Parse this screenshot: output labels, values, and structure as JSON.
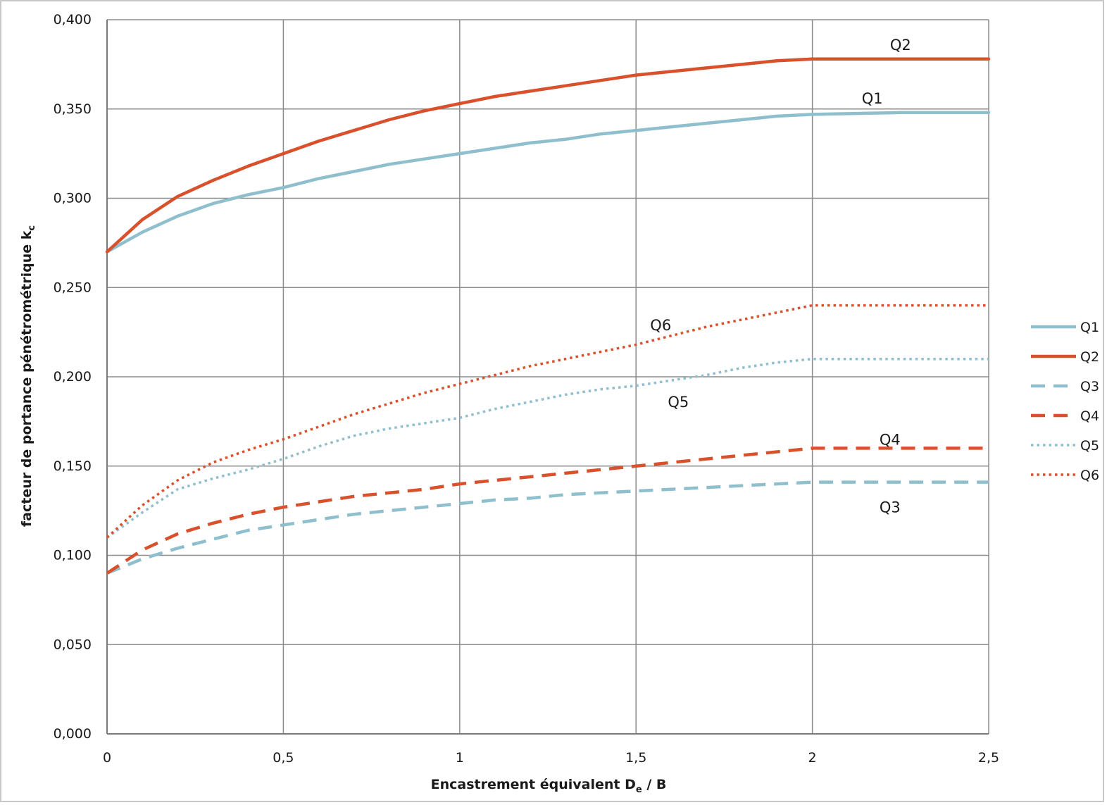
{
  "chart_data": {
    "type": "line",
    "xlabel_main": "Encastrement équivalent D",
    "xlabel_sub": "e",
    "xlabel_tail": " / B",
    "ylabel_main": "facteur de portance pénétrométrique k",
    "ylabel_sub": "c",
    "xlim": [
      0,
      2.5
    ],
    "ylim": [
      0,
      0.4
    ],
    "x_ticks": [
      0,
      0.5,
      1,
      1.5,
      2,
      2.5
    ],
    "x_tick_labels": [
      "0",
      "0,5",
      "1",
      "1,5",
      "2",
      "2,5"
    ],
    "y_ticks": [
      0,
      0.05,
      0.1,
      0.15,
      0.2,
      0.25,
      0.3,
      0.35,
      0.4
    ],
    "y_tick_labels": [
      "0,000",
      "0,050",
      "0,100",
      "0,150",
      "0,200",
      "0,250",
      "0,300",
      "0,350",
      "0,400"
    ],
    "grid": true,
    "legend_position": "right",
    "x": [
      0,
      0.1,
      0.2,
      0.3,
      0.4,
      0.5,
      0.6,
      0.7,
      0.8,
      0.9,
      1.0,
      1.1,
      1.2,
      1.3,
      1.4,
      1.5,
      1.6,
      1.7,
      1.8,
      1.9,
      2.0,
      2.25,
      2.5
    ],
    "series": [
      {
        "name": "Q1",
        "color": "#8fbfcc",
        "style": "solid",
        "values": [
          0.27,
          0.281,
          0.29,
          0.297,
          0.302,
          0.306,
          0.311,
          0.315,
          0.319,
          0.322,
          0.325,
          0.328,
          0.331,
          0.333,
          0.336,
          0.338,
          0.34,
          0.342,
          0.344,
          0.346,
          0.347,
          0.348,
          0.348
        ]
      },
      {
        "name": "Q2",
        "color": "#d9512c",
        "style": "solid",
        "values": [
          0.27,
          0.288,
          0.301,
          0.31,
          0.318,
          0.325,
          0.332,
          0.338,
          0.344,
          0.349,
          0.353,
          0.357,
          0.36,
          0.363,
          0.366,
          0.369,
          0.371,
          0.373,
          0.375,
          0.377,
          0.378,
          0.378,
          0.378
        ]
      },
      {
        "name": "Q3",
        "color": "#8fbfcc",
        "style": "dashed",
        "values": [
          0.09,
          0.098,
          0.104,
          0.109,
          0.114,
          0.117,
          0.12,
          0.123,
          0.125,
          0.127,
          0.129,
          0.131,
          0.132,
          0.134,
          0.135,
          0.136,
          0.137,
          0.138,
          0.139,
          0.14,
          0.141,
          0.141,
          0.141
        ]
      },
      {
        "name": "Q4",
        "color": "#d9512c",
        "style": "dashed",
        "values": [
          0.09,
          0.103,
          0.112,
          0.118,
          0.123,
          0.127,
          0.13,
          0.133,
          0.135,
          0.137,
          0.14,
          0.142,
          0.144,
          0.146,
          0.148,
          0.15,
          0.152,
          0.154,
          0.156,
          0.158,
          0.16,
          0.16,
          0.16
        ]
      },
      {
        "name": "Q5",
        "color": "#8fbfcc",
        "style": "dotted",
        "values": [
          0.11,
          0.124,
          0.137,
          0.143,
          0.148,
          0.154,
          0.161,
          0.167,
          0.171,
          0.174,
          0.177,
          0.182,
          0.186,
          0.19,
          0.193,
          0.195,
          0.198,
          0.201,
          0.205,
          0.208,
          0.21,
          0.21,
          0.21
        ]
      },
      {
        "name": "Q6",
        "color": "#d9512c",
        "style": "dotted",
        "values": [
          0.11,
          0.128,
          0.142,
          0.152,
          0.159,
          0.165,
          0.172,
          0.179,
          0.185,
          0.191,
          0.196,
          0.201,
          0.206,
          0.21,
          0.214,
          0.218,
          0.223,
          0.228,
          0.232,
          0.236,
          0.24,
          0.24,
          0.24
        ]
      }
    ],
    "curve_labels": [
      {
        "text": "Q2",
        "x": 2.25,
        "y": 0.383
      },
      {
        "text": "Q1",
        "x": 2.17,
        "y": 0.353
      },
      {
        "text": "Q6",
        "x": 1.57,
        "y": 0.226
      },
      {
        "text": "Q5",
        "x": 1.62,
        "y": 0.183
      },
      {
        "text": "Q4",
        "x": 2.22,
        "y": 0.162
      },
      {
        "text": "Q3",
        "x": 2.22,
        "y": 0.124
      }
    ]
  }
}
